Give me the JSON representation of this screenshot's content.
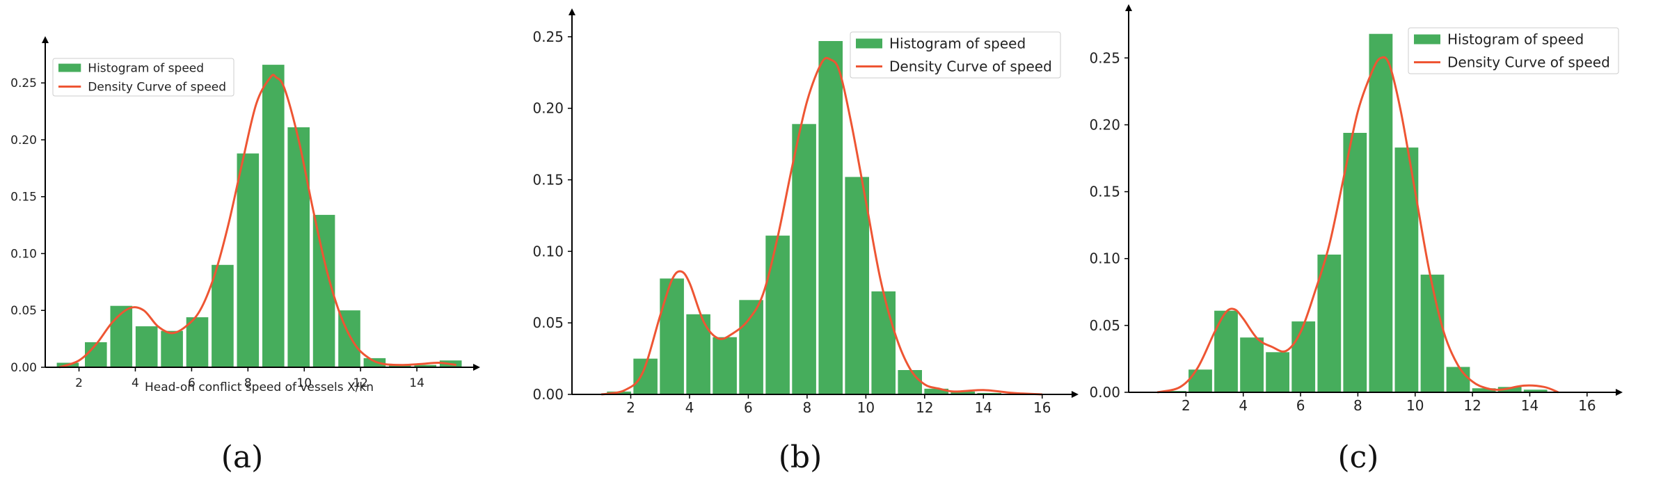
{
  "colors": {
    "bar": "#46ad5c",
    "curve": "#ee5533",
    "axis": "#000000"
  },
  "chart_data": [
    {
      "type": "bar",
      "caption": "(a)",
      "xlabel": "Head-on conflict speed of vessels X/kn",
      "ylabel": "",
      "xlim": [
        0.8,
        16.0
      ],
      "ylim": [
        0,
        0.285
      ],
      "xticks": [
        2,
        4,
        6,
        8,
        10,
        12,
        14
      ],
      "xtick_labels": [
        "2",
        "4",
        "6",
        "8",
        "10",
        "12",
        "14"
      ],
      "yticks": [
        0.0,
        0.05,
        0.1,
        0.15,
        0.2,
        0.25
      ],
      "ytick_labels": [
        "0.00",
        "0.05",
        "0.10",
        "0.15",
        "0.20",
        "0.25"
      ],
      "legend": [
        "Histogram of speed",
        "Density Curve of speed"
      ],
      "legend_position": "top-left",
      "grid": false,
      "series": [
        {
          "name": "Histogram of speed",
          "type": "bar",
          "x": [
            1.6,
            2.6,
            3.5,
            4.4,
            5.3,
            6.2,
            7.1,
            8.0,
            8.9,
            9.8,
            10.7,
            11.6,
            12.5,
            13.4,
            14.3,
            15.2
          ],
          "values": [
            0.004,
            0.022,
            0.054,
            0.036,
            0.032,
            0.044,
            0.09,
            0.188,
            0.266,
            0.211,
            0.134,
            0.05,
            0.008,
            0.002,
            0.002,
            0.006
          ]
        },
        {
          "name": "Density Curve of speed",
          "type": "line",
          "x": [
            1.3,
            2.0,
            2.6,
            3.2,
            3.8,
            4.3,
            4.8,
            5.3,
            5.8,
            6.3,
            6.8,
            7.3,
            7.8,
            8.3,
            8.8,
            9.0,
            9.3,
            9.8,
            10.3,
            10.8,
            11.3,
            11.8,
            12.3,
            12.8,
            13.5,
            14.2,
            14.8,
            15.4
          ],
          "values": [
            0.0,
            0.006,
            0.02,
            0.04,
            0.052,
            0.05,
            0.036,
            0.03,
            0.036,
            0.05,
            0.08,
            0.125,
            0.18,
            0.232,
            0.255,
            0.255,
            0.245,
            0.2,
            0.14,
            0.085,
            0.045,
            0.02,
            0.008,
            0.003,
            0.002,
            0.003,
            0.004,
            0.002
          ]
        }
      ]
    },
    {
      "type": "bar",
      "caption": "(b)",
      "xlabel": "",
      "ylabel": "",
      "xlim": [
        0.0,
        17.0
      ],
      "ylim": [
        0,
        0.265
      ],
      "xticks": [
        2,
        4,
        6,
        8,
        10,
        12,
        14,
        16
      ],
      "xtick_labels": [
        "2",
        "4",
        "6",
        "8",
        "10",
        "12",
        "14",
        "16"
      ],
      "yticks": [
        0.0,
        0.05,
        0.1,
        0.15,
        0.2,
        0.25
      ],
      "ytick_labels": [
        "0.00",
        "0.05",
        "0.10",
        "0.15",
        "0.20",
        "0.25"
      ],
      "legend": [
        "Histogram of speed",
        "Density Curve of speed"
      ],
      "legend_position": "top-right",
      "grid": false,
      "series": [
        {
          "name": "Histogram of speed",
          "type": "bar",
          "x": [
            1.6,
            2.5,
            3.4,
            4.3,
            5.2,
            6.1,
            7.0,
            7.9,
            8.8,
            9.7,
            10.6,
            11.5,
            12.4,
            13.3,
            14.2
          ],
          "values": [
            0.002,
            0.025,
            0.081,
            0.056,
            0.04,
            0.066,
            0.111,
            0.189,
            0.247,
            0.152,
            0.072,
            0.017,
            0.004,
            0.002,
            0.001
          ]
        },
        {
          "name": "Density Curve of speed",
          "type": "line",
          "x": [
            1.0,
            1.8,
            2.4,
            3.0,
            3.4,
            3.7,
            4.0,
            4.5,
            5.0,
            5.5,
            6.0,
            6.5,
            7.0,
            7.5,
            8.0,
            8.5,
            8.8,
            9.1,
            9.5,
            10.0,
            10.5,
            11.0,
            11.5,
            12.0,
            12.5,
            13.0,
            14.0,
            15.0,
            16.0
          ],
          "values": [
            0.0,
            0.003,
            0.015,
            0.055,
            0.08,
            0.086,
            0.078,
            0.05,
            0.039,
            0.043,
            0.052,
            0.07,
            0.11,
            0.16,
            0.205,
            0.232,
            0.234,
            0.226,
            0.19,
            0.135,
            0.08,
            0.042,
            0.018,
            0.007,
            0.004,
            0.002,
            0.003,
            0.001,
            0.0
          ]
        }
      ]
    },
    {
      "type": "bar",
      "caption": "(c)",
      "xlabel": "",
      "ylabel": "",
      "xlim": [
        0.0,
        17.0
      ],
      "ylim": [
        0,
        0.285
      ],
      "xticks": [
        2,
        4,
        6,
        8,
        10,
        12,
        14,
        16
      ],
      "xtick_labels": [
        "2",
        "4",
        "6",
        "8",
        "10",
        "12",
        "14",
        "16"
      ],
      "yticks": [
        0.0,
        0.05,
        0.1,
        0.15,
        0.2,
        0.25
      ],
      "ytick_labels": [
        "0.00",
        "0.05",
        "0.10",
        "0.15",
        "0.20",
        "0.25"
      ],
      "legend": [
        "Histogram of speed",
        "Density Curve of speed"
      ],
      "legend_position": "top-right",
      "grid": false,
      "series": [
        {
          "name": "Histogram of speed",
          "type": "bar",
          "x": [
            1.6,
            2.5,
            3.4,
            4.3,
            5.2,
            6.1,
            7.0,
            7.9,
            8.8,
            9.7,
            10.6,
            11.5,
            12.4,
            13.3,
            14.2
          ],
          "values": [
            0.001,
            0.017,
            0.061,
            0.041,
            0.03,
            0.053,
            0.103,
            0.194,
            0.268,
            0.183,
            0.088,
            0.019,
            0.003,
            0.004,
            0.002
          ]
        },
        {
          "name": "Density Curve of speed",
          "type": "line",
          "x": [
            1.0,
            1.8,
            2.4,
            3.0,
            3.4,
            3.7,
            4.0,
            4.5,
            5.0,
            5.5,
            6.0,
            6.5,
            7.0,
            7.5,
            8.0,
            8.5,
            8.8,
            9.1,
            9.5,
            10.0,
            10.5,
            11.0,
            11.5,
            12.0,
            12.5,
            13.0,
            13.8,
            14.5,
            15.0
          ],
          "values": [
            0.0,
            0.004,
            0.018,
            0.045,
            0.06,
            0.062,
            0.055,
            0.04,
            0.034,
            0.031,
            0.045,
            0.075,
            0.11,
            0.16,
            0.21,
            0.24,
            0.25,
            0.245,
            0.21,
            0.15,
            0.09,
            0.045,
            0.02,
            0.008,
            0.003,
            0.002,
            0.005,
            0.004,
            0.0
          ]
        }
      ]
    }
  ]
}
